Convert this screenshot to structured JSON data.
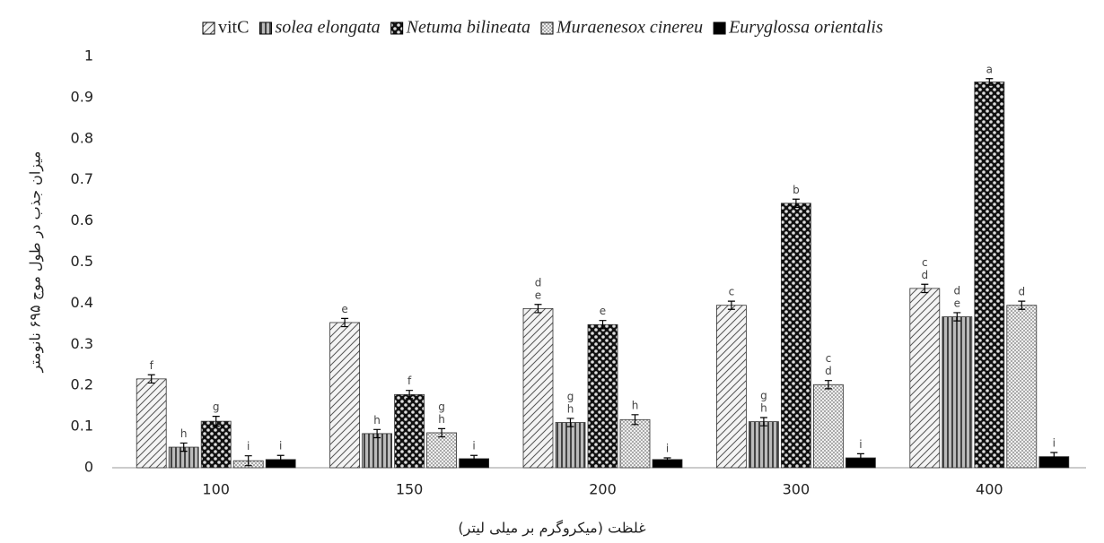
{
  "chart_data": {
    "type": "bar",
    "ylabel": "میزان جذب در طول موج ۶۹۵ نانومتر",
    "xlabel": "غلظت (میکروگرم بر میلی لیتر)",
    "categories": [
      "100",
      "150",
      "200",
      "300",
      "400"
    ],
    "ylim": [
      0,
      1
    ],
    "yticks": [
      0,
      0.1,
      0.2,
      0.3,
      0.4,
      0.5,
      0.6,
      0.7,
      0.8,
      0.9,
      1
    ],
    "grid": false,
    "legend": "top",
    "series": [
      {
        "name": "vitC",
        "color": "#e8e8e8",
        "pattern": "diagonal",
        "italic": false,
        "values": [
          0.216,
          0.353,
          0.387,
          0.395,
          0.436
        ],
        "errors": [
          0.01,
          0.01,
          0.01,
          0.01,
          0.01
        ],
        "letters": [
          [
            "f"
          ],
          [
            "e"
          ],
          [
            "d",
            "e"
          ],
          [
            "c"
          ],
          [
            "c",
            "d"
          ]
        ]
      },
      {
        "name": "solea elongata",
        "color": "#8a8a8a",
        "pattern": "vertical",
        "italic": true,
        "values": [
          0.05,
          0.083,
          0.11,
          0.112,
          0.367
        ],
        "errors": [
          0.01,
          0.01,
          0.01,
          0.01,
          0.01
        ],
        "letters": [
          [
            "h"
          ],
          [
            "h"
          ],
          [
            "g",
            "h"
          ],
          [
            "g",
            "h"
          ],
          [
            "d",
            "e"
          ]
        ]
      },
      {
        "name": "Netuma bilineata",
        "color": "#2a2a2a",
        "pattern": "checker",
        "italic": true,
        "values": [
          0.113,
          0.178,
          0.348,
          0.643,
          0.938
        ],
        "errors": [
          0.012,
          0.01,
          0.01,
          0.01,
          0.008
        ],
        "letters": [
          [
            "g"
          ],
          [
            "f"
          ],
          [
            "e"
          ],
          [
            "b"
          ],
          [
            "a"
          ]
        ]
      },
      {
        "name": "Muraenesox cinereu",
        "color": "#d0d0d0",
        "pattern": "dots",
        "italic": true,
        "values": [
          0.017,
          0.085,
          0.117,
          0.202,
          0.395
        ],
        "errors": [
          0.012,
          0.01,
          0.012,
          0.01,
          0.01
        ],
        "letters": [
          [
            "i"
          ],
          [
            "g",
            "h"
          ],
          [
            "h"
          ],
          [
            "c",
            "d"
          ],
          [
            "d"
          ]
        ]
      },
      {
        "name": "Euryglossa orientalis",
        "color": "#000000",
        "pattern": "solid",
        "italic": true,
        "values": [
          0.02,
          0.022,
          0.02,
          0.024,
          0.027
        ],
        "errors": [
          0.01,
          0.008,
          0.004,
          0.01,
          0.01
        ],
        "letters": [
          [
            "i"
          ],
          [
            "i"
          ],
          [
            "i"
          ],
          [
            "i"
          ],
          [
            "i"
          ]
        ]
      }
    ]
  }
}
